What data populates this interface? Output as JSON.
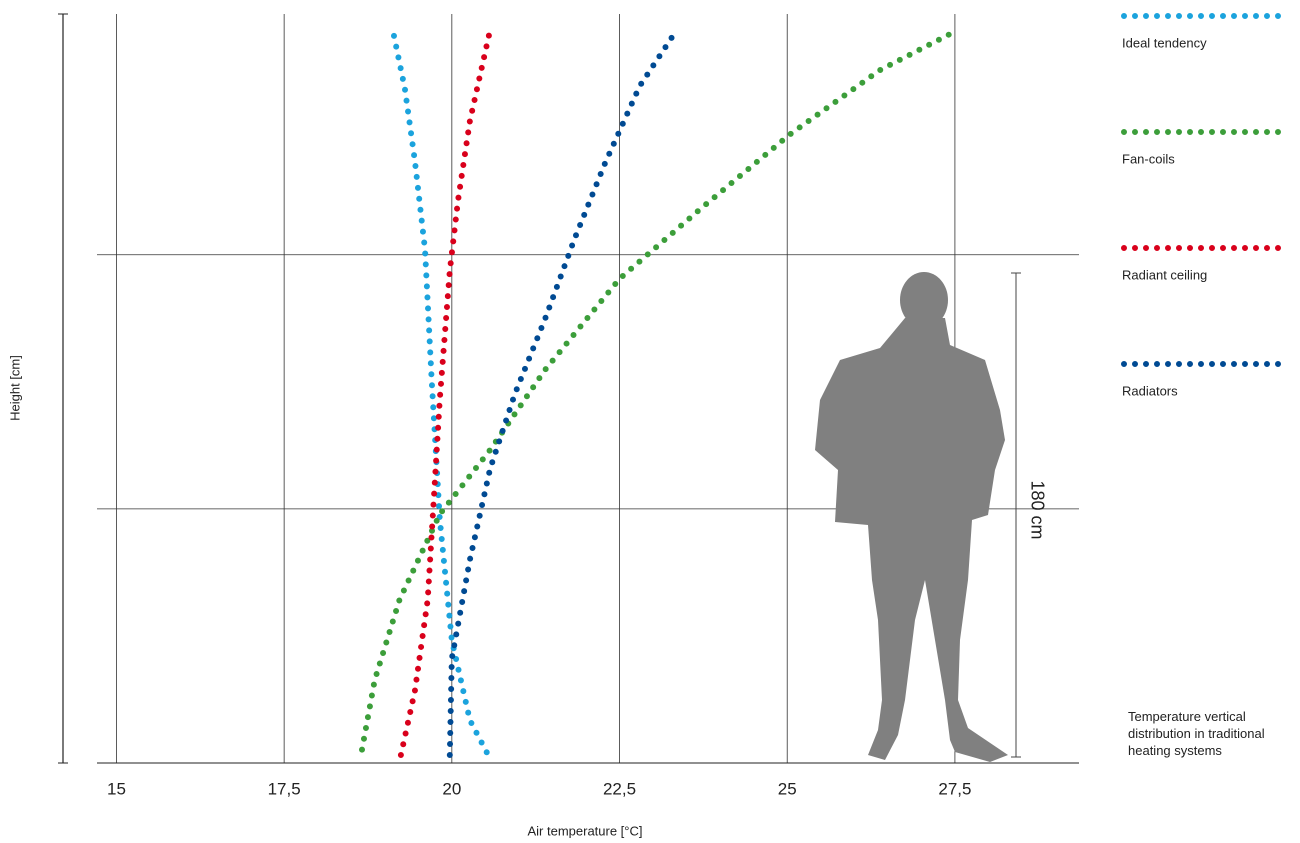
{
  "chart_data": {
    "type": "line",
    "x_label": "Air temperature [°C]",
    "y_label": "Height [cm]",
    "annotation": "180 cm",
    "caption": "Temperature vertical distribution in traditional heating systems",
    "xlim": [
      14.71,
      29.35
    ],
    "ylim": [
      0,
      280
    ],
    "xticks": [
      15,
      {
        "value": 17.5,
        "label": "17,5"
      },
      20,
      {
        "value": 22.5,
        "label": "22,5"
      },
      25,
      {
        "value": 27.5,
        "label": "27,5"
      }
    ],
    "y_grid_lines": [
      95,
      190
    ],
    "grid": true,
    "series": [
      {
        "name": "Ideal tendency",
        "color": "#1ba3dd",
        "x": [
          20.52,
          20.27,
          20.0,
          19.82,
          19.7,
          19.6,
          19.45,
          19.3,
          19.12
        ],
        "y": [
          4,
          16,
          46,
          91,
          143,
          192,
          225,
          252,
          274
        ]
      },
      {
        "name": "Fan-coils",
        "color": "#3c9e3a",
        "x": [
          18.66,
          18.85,
          19.22,
          19.82,
          20.57,
          21.39,
          22.5,
          23.7,
          25.04,
          26.38,
          27.54
        ],
        "y": [
          5,
          31,
          61,
          93,
          117,
          147,
          181,
          207,
          235,
          259,
          274
        ]
      },
      {
        "name": "Radiant ceiling",
        "color": "#d9001b",
        "x": [
          19.24,
          19.45,
          19.64,
          19.73,
          19.82,
          19.97,
          20.09,
          20.27,
          20.57
        ],
        "y": [
          3,
          27,
          61,
          98,
          136,
          184,
          210,
          240,
          274
        ]
      },
      {
        "name": "Radiators",
        "color": "#004a93",
        "x": [
          19.97,
          20.0,
          20.27,
          20.57,
          20.94,
          21.39,
          21.83,
          22.28,
          22.8,
          23.3
        ],
        "y": [
          3,
          39,
          76,
          110,
          138,
          166,
          196,
          224,
          253,
          272
        ]
      }
    ]
  }
}
